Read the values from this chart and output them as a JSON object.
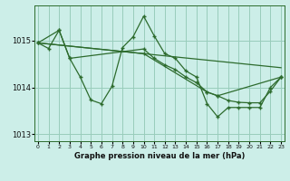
{
  "title": "Graphe pression niveau de la mer (hPa)",
  "bg_color": "#cceee8",
  "grid_color": "#99ccbb",
  "line_color": "#2d6b2d",
  "xlim": [
    -0.3,
    23.3
  ],
  "ylim": [
    1012.85,
    1015.75
  ],
  "yticks": [
    1013,
    1014,
    1015
  ],
  "xticks": [
    0,
    1,
    2,
    3,
    4,
    5,
    6,
    7,
    8,
    9,
    10,
    11,
    12,
    13,
    14,
    15,
    16,
    17,
    18,
    19,
    20,
    21,
    22,
    23
  ],
  "series_volatile": {
    "x": [
      0,
      1,
      2,
      3,
      4,
      5,
      6,
      7,
      8,
      9,
      10,
      11,
      12,
      13,
      14,
      15,
      16,
      17,
      18,
      19,
      20,
      21,
      22,
      23
    ],
    "y": [
      1014.95,
      1014.83,
      1015.22,
      1014.62,
      1014.22,
      1013.73,
      1013.65,
      1014.02,
      1014.85,
      1015.08,
      1015.52,
      1015.1,
      1014.72,
      1014.62,
      1014.35,
      1014.22,
      1013.65,
      1013.37,
      1013.57,
      1013.57,
      1013.57,
      1013.57,
      1014.0,
      1014.22
    ]
  },
  "series_slow1": {
    "x": [
      0,
      2,
      3,
      10,
      11,
      12,
      13,
      14,
      15,
      16,
      17,
      18,
      19,
      20,
      21,
      22,
      23
    ],
    "y": [
      1014.95,
      1015.22,
      1014.62,
      1014.82,
      1014.62,
      1014.48,
      1014.38,
      1014.22,
      1014.1,
      1013.9,
      1013.82,
      1013.72,
      1013.68,
      1013.67,
      1013.67,
      1013.92,
      1014.22
    ]
  },
  "series_linear1": {
    "x": [
      0,
      3,
      10,
      16,
      17,
      18,
      19,
      20,
      21,
      22,
      23
    ],
    "y": [
      1014.95,
      1014.62,
      1014.72,
      1013.9,
      1013.82,
      1013.72,
      1013.68,
      1013.67,
      1013.67,
      1013.92,
      1014.22
    ]
  },
  "series_linear2": {
    "x": [
      0,
      23
    ],
    "y": [
      1014.95,
      1014.42
    ]
  },
  "series_linear3": {
    "x": [
      0,
      10,
      16,
      17,
      23
    ],
    "y": [
      1014.95,
      1014.72,
      1013.9,
      1013.82,
      1014.22
    ]
  }
}
